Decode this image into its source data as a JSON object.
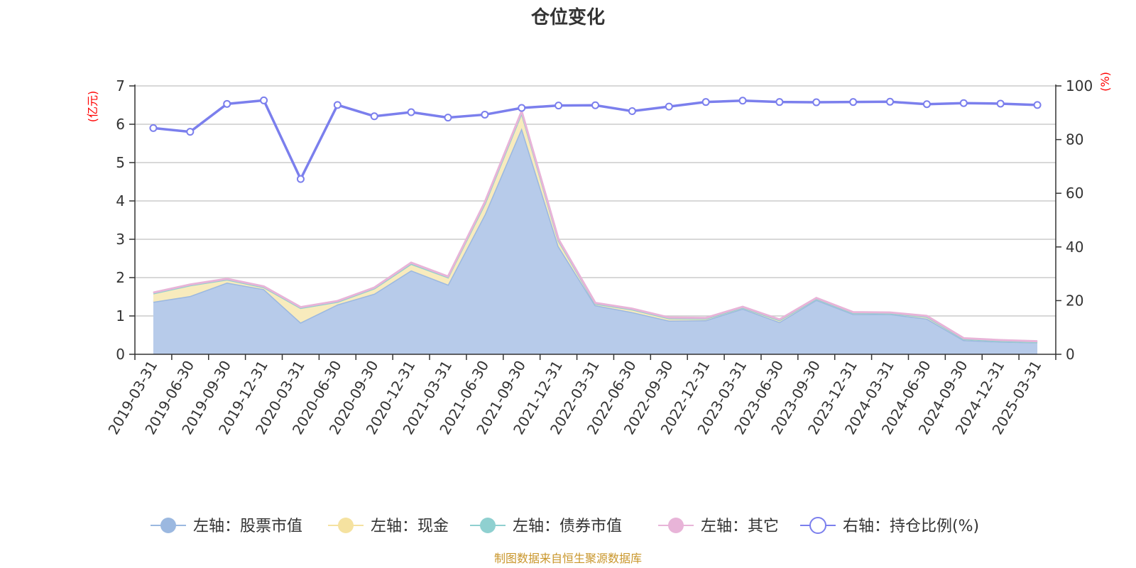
{
  "title": "仓位变化",
  "source": "制图数据来自恒生聚源数据库",
  "chart_data": {
    "type": "area",
    "title": "仓位变化",
    "left_axis": {
      "unit_label": "(亿元)",
      "ylim": [
        0,
        7
      ],
      "ticks": [
        "0",
        "1",
        "2",
        "3",
        "4",
        "5",
        "6",
        "7"
      ]
    },
    "right_axis": {
      "unit_label": "(%)",
      "ylim": [
        0,
        100
      ],
      "ticks": [
        "0",
        "20",
        "40",
        "60",
        "80",
        "100"
      ]
    },
    "categories": [
      "2019-03-31",
      "2019-06-30",
      "2019-09-30",
      "2019-12-31",
      "2020-03-31",
      "2020-06-30",
      "2020-09-30",
      "2020-12-31",
      "2021-03-31",
      "2021-06-30",
      "2021-09-30",
      "2021-12-31",
      "2022-03-31",
      "2022-06-30",
      "2022-09-30",
      "2022-12-31",
      "2023-03-31",
      "2023-06-30",
      "2023-09-30",
      "2023-12-31",
      "2024-03-31",
      "2024-06-30",
      "2024-09-30",
      "2024-12-31",
      "2025-03-31"
    ],
    "grid": true,
    "legend_position": "bottom",
    "series": [
      {
        "name": "左轴：股票市值",
        "axis": "left",
        "kind": "stacked-area",
        "color": "#9bb8e0",
        "fill": "#b7cbea",
        "values": [
          1.37,
          1.52,
          1.87,
          1.7,
          0.83,
          1.3,
          1.58,
          2.19,
          1.82,
          3.65,
          5.9,
          2.82,
          1.28,
          1.1,
          0.88,
          0.89,
          1.19,
          0.84,
          1.42,
          1.05,
          1.05,
          0.93,
          0.37,
          0.33,
          0.31
        ]
      },
      {
        "name": "左轴：现金",
        "axis": "left",
        "kind": "stacked-area",
        "color": "#f5e2a0",
        "fill": "#f8ebbd",
        "values": [
          0.22,
          0.28,
          0.08,
          0.05,
          0.38,
          0.07,
          0.14,
          0.17,
          0.19,
          0.28,
          0.4,
          0.15,
          0.04,
          0.07,
          0.06,
          0.04,
          0.03,
          0.05,
          0.03,
          0.03,
          0.02,
          0.05,
          0.03,
          0.02,
          0.01
        ]
      },
      {
        "name": "左轴：债券市值",
        "axis": "left",
        "kind": "stacked-area",
        "color": "#8fd0d0",
        "fill": "#a8dcdc",
        "values": [
          0,
          0,
          0,
          0,
          0,
          0,
          0,
          0,
          0,
          0,
          0,
          0,
          0,
          0,
          0,
          0,
          0,
          0,
          0,
          0,
          0,
          0,
          0,
          0,
          0
        ]
      },
      {
        "name": "左轴：其它",
        "axis": "left",
        "kind": "stacked-area",
        "color": "#e8b4d8",
        "fill": "#f0cfe5",
        "values": [
          0.02,
          0.02,
          0.02,
          0.02,
          0.02,
          0.02,
          0.02,
          0.03,
          0.02,
          0.04,
          0.04,
          0.03,
          0.02,
          0.02,
          0.02,
          0.02,
          0.02,
          0.02,
          0.02,
          0.02,
          0.02,
          0.02,
          0.02,
          0.02,
          0.02
        ]
      },
      {
        "name": "右轴：持仓比例(%)",
        "axis": "right",
        "kind": "line",
        "color": "#7b7fed",
        "values": [
          84.3,
          82.9,
          93.3,
          94.6,
          65.3,
          92.9,
          88.7,
          90.2,
          88.2,
          89.3,
          91.8,
          92.7,
          92.8,
          90.6,
          92.3,
          94.0,
          94.5,
          94.0,
          93.9,
          94.0,
          94.1,
          93.2,
          93.6,
          93.4,
          92.9
        ]
      }
    ]
  }
}
